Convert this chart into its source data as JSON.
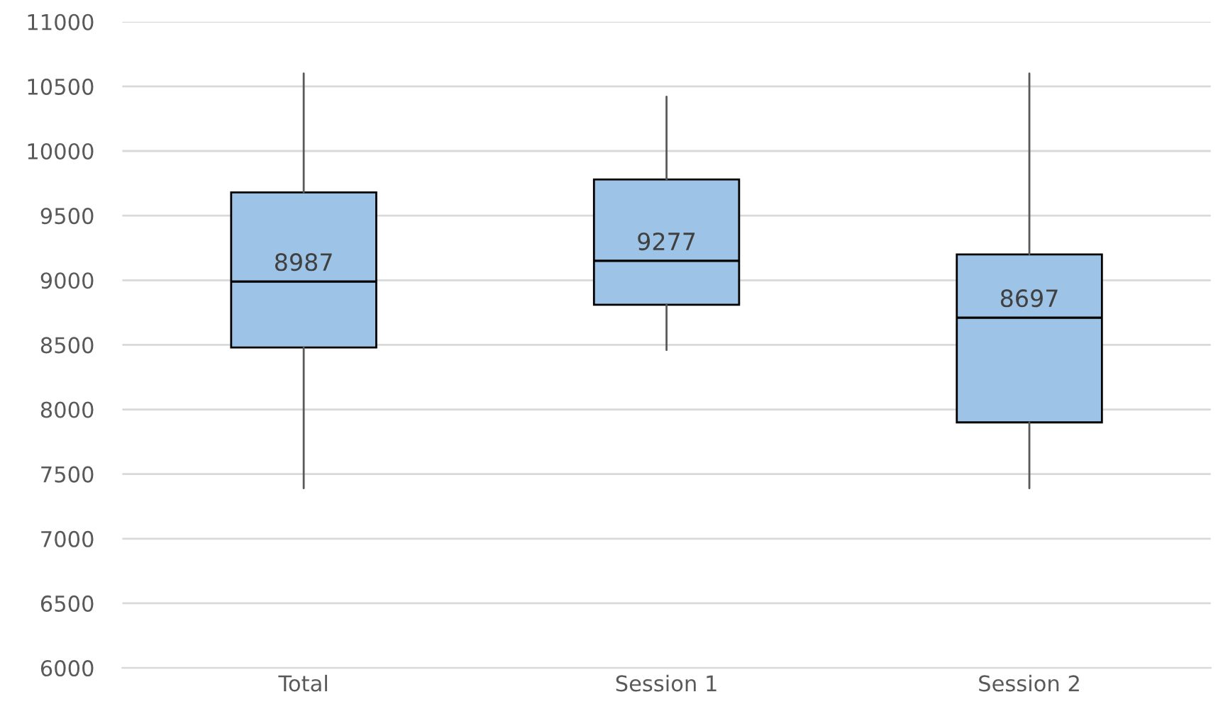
{
  "chart_data": {
    "type": "box",
    "categories": [
      "Total",
      "Session 1",
      "Session 2"
    ],
    "boxes": [
      {
        "low": 7390,
        "q1": 8480,
        "median": 8990,
        "q3": 9680,
        "high": 10600
      },
      {
        "low": 8460,
        "q1": 8810,
        "median": 9150,
        "q3": 9780,
        "high": 10420
      },
      {
        "low": 7390,
        "q1": 7900,
        "median": 8710,
        "q3": 9200,
        "high": 10600
      }
    ],
    "color": "#9dc3e6",
    "annotations": [
      "8987",
      "9277",
      "8697"
    ],
    "ylim": [
      6000,
      11000
    ],
    "yticks": [
      6000,
      6500,
      7000,
      7500,
      8000,
      8500,
      9000,
      9500,
      10000,
      10500,
      11000
    ],
    "grid": "y"
  }
}
